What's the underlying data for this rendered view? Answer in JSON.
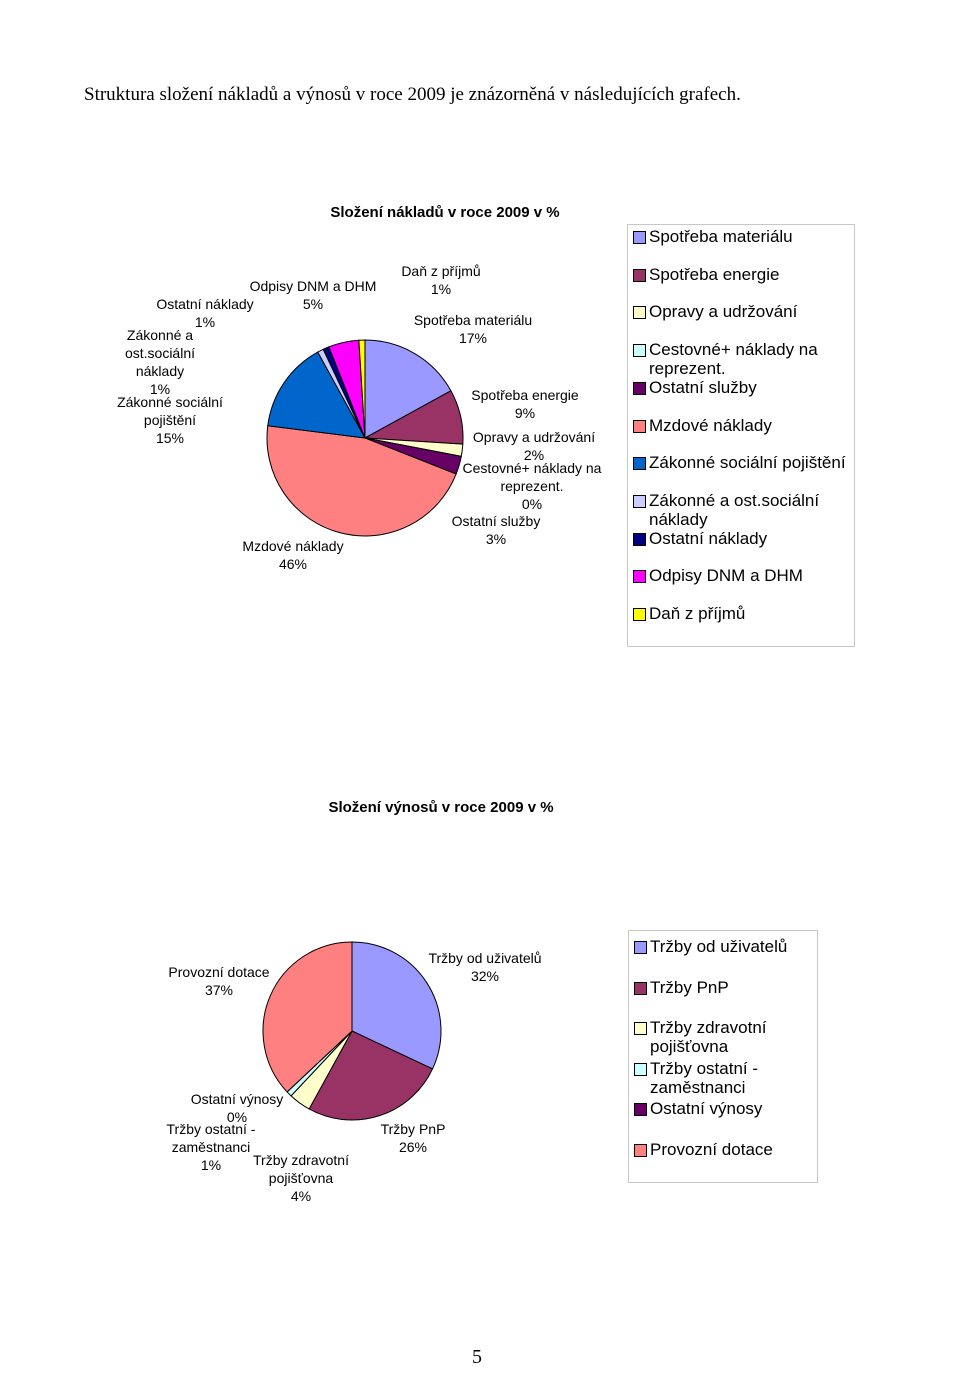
{
  "intro": "Struktura složení nákladů a výnosů v roce 2009 je znázorněná v následujících grafech.",
  "chart_data": [
    {
      "type": "pie",
      "title": "Složení nákladů v roce 2009 v %",
      "categories": [
        "Spotřeba materiálu",
        "Spotřeba energie",
        "Opravy a udržování",
        "Cestovné+ náklady na reprezent.",
        "Ostatní služby",
        "Mzdové náklady",
        "Zákonné sociální pojištění",
        "Zákonné a ost.sociální náklady",
        "Ostatní náklady",
        "Odpisy DNM a DHM",
        "Daň z příjmů"
      ],
      "values": [
        17,
        9,
        2,
        0,
        3,
        46,
        15,
        1,
        1,
        5,
        1
      ],
      "value_labels": [
        "17%",
        "9%",
        "2%",
        "0%",
        "3%",
        "46%",
        "15%",
        "1%",
        "1%",
        "5%",
        "1%"
      ],
      "colors": [
        "#9999ff",
        "#993366",
        "#ffffcc",
        "#ccffff",
        "#660066",
        "#ff8080",
        "#0066cc",
        "#ccccff",
        "#000080",
        "#ff00ff",
        "#ffff00"
      ]
    },
    {
      "type": "pie",
      "title": "Složení výnosů v roce 2009 v %",
      "categories": [
        "Tržby od uživatelů",
        "Tržby PnP",
        "Tržby zdravotní pojišťovna",
        "Tržby ostatní - zaměstnanci",
        "Ostatní výnosy",
        "Provozní dotace"
      ],
      "values": [
        32,
        26,
        4,
        1,
        0,
        37
      ],
      "value_labels": [
        "32%",
        "26%",
        "4%",
        "1%",
        "0%",
        "37%"
      ],
      "colors": [
        "#9999ff",
        "#993366",
        "#ffffcc",
        "#ccffff",
        "#660066",
        "#ff8080"
      ]
    }
  ],
  "page_number": "5"
}
